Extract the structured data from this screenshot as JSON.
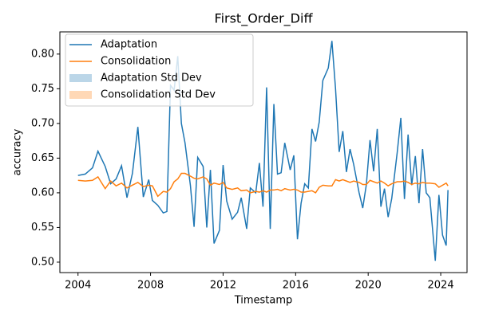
{
  "chart_data": {
    "type": "line",
    "title": "First_Order_Diff",
    "x_label": "Timestamp",
    "y_label": "accuracy",
    "x": [
      2004.0,
      2004.4,
      2004.8,
      2005.1,
      2005.5,
      2005.8,
      2006.1,
      2006.4,
      2006.7,
      2007.0,
      2007.3,
      2007.6,
      2007.9,
      2008.1,
      2008.4,
      2008.7,
      2008.9,
      2009.1,
      2009.3,
      2009.5,
      2009.7,
      2009.9,
      2010.2,
      2010.4,
      2010.6,
      2010.9,
      2011.1,
      2011.3,
      2011.5,
      2011.8,
      2012.0,
      2012.2,
      2012.5,
      2012.8,
      2013.0,
      2013.3,
      2013.5,
      2013.8,
      2014.0,
      2014.2,
      2014.4,
      2014.6,
      2014.8,
      2015.0,
      2015.2,
      2015.4,
      2015.7,
      2015.9,
      2016.1,
      2016.3,
      2016.5,
      2016.7,
      2016.9,
      2017.1,
      2017.3,
      2017.5,
      2017.8,
      2018.0,
      2018.2,
      2018.4,
      2018.6,
      2018.8,
      2019.0,
      2019.2,
      2019.5,
      2019.7,
      2019.9,
      2020.1,
      2020.3,
      2020.5,
      2020.7,
      2020.9,
      2021.1,
      2021.3,
      2021.6,
      2021.8,
      2022.0,
      2022.2,
      2022.4,
      2022.6,
      2022.8,
      2023.0,
      2023.2,
      2023.4,
      2023.7,
      2023.9,
      2024.1,
      2024.3,
      2024.4
    ],
    "series": [
      {
        "name": "Adaptation",
        "color": "#1f77b4",
        "values": [
          0.625,
          0.627,
          0.636,
          0.66,
          0.638,
          0.613,
          0.62,
          0.639,
          0.593,
          0.628,
          0.695,
          0.594,
          0.619,
          0.589,
          0.582,
          0.571,
          0.573,
          0.755,
          0.748,
          0.797,
          0.7,
          0.672,
          0.61,
          0.551,
          0.651,
          0.638,
          0.55,
          0.633,
          0.527,
          0.546,
          0.64,
          0.588,
          0.562,
          0.572,
          0.593,
          0.548,
          0.607,
          0.6,
          0.643,
          0.58,
          0.752,
          0.548,
          0.728,
          0.627,
          0.629,
          0.672,
          0.633,
          0.654,
          0.533,
          0.585,
          0.613,
          0.607,
          0.692,
          0.674,
          0.702,
          0.762,
          0.78,
          0.819,
          0.75,
          0.659,
          0.689,
          0.63,
          0.663,
          0.641,
          0.6,
          0.578,
          0.612,
          0.676,
          0.631,
          0.692,
          0.58,
          0.606,
          0.565,
          0.592,
          0.658,
          0.708,
          0.591,
          0.684,
          0.611,
          0.653,
          0.585,
          0.663,
          0.6,
          0.593,
          0.502,
          0.597,
          0.539,
          0.524,
          0.604
        ]
      },
      {
        "name": "Consolidation",
        "color": "#ff7f0e",
        "values": [
          0.618,
          0.617,
          0.618,
          0.623,
          0.606,
          0.617,
          0.61,
          0.614,
          0.607,
          0.611,
          0.615,
          0.609,
          0.611,
          0.61,
          0.595,
          0.602,
          0.601,
          0.606,
          0.616,
          0.62,
          0.628,
          0.628,
          0.624,
          0.621,
          0.62,
          0.623,
          0.62,
          0.611,
          0.614,
          0.612,
          0.615,
          0.607,
          0.605,
          0.607,
          0.603,
          0.604,
          0.6,
          0.602,
          0.601,
          0.603,
          0.601,
          0.604,
          0.604,
          0.605,
          0.603,
          0.606,
          0.604,
          0.605,
          0.604,
          0.601,
          0.601,
          0.602,
          0.603,
          0.6,
          0.608,
          0.611,
          0.61,
          0.61,
          0.619,
          0.617,
          0.619,
          0.617,
          0.615,
          0.617,
          0.615,
          0.612,
          0.612,
          0.618,
          0.616,
          0.614,
          0.617,
          0.614,
          0.61,
          0.613,
          0.616,
          0.616,
          0.617,
          0.615,
          0.612,
          0.614,
          0.613,
          0.615,
          0.614,
          0.614,
          0.613,
          0.608,
          0.611,
          0.614,
          0.61
        ]
      },
      {
        "name": "Adaptation Std Dev",
        "color": "#1f77b4",
        "opacity": 0.3
      },
      {
        "name": "Consolidation Std Dev",
        "color": "#ff7f0e",
        "opacity": 0.3
      }
    ],
    "xlim": [
      2003.0,
      2025.45
    ],
    "xticks": [
      2004,
      2008,
      2012,
      2016,
      2020,
      2024
    ],
    "ylim": [
      0.485,
      0.832
    ],
    "yticks": [
      {
        "value": 0.5,
        "label": "0.50"
      },
      0.55,
      {
        "value": 0.6,
        "label": "0.60"
      },
      0.65,
      {
        "value": 0.7,
        "label": "0.70"
      },
      0.75,
      {
        "value": 0.8,
        "label": "0.80"
      }
    ],
    "legend": "upper left"
  }
}
